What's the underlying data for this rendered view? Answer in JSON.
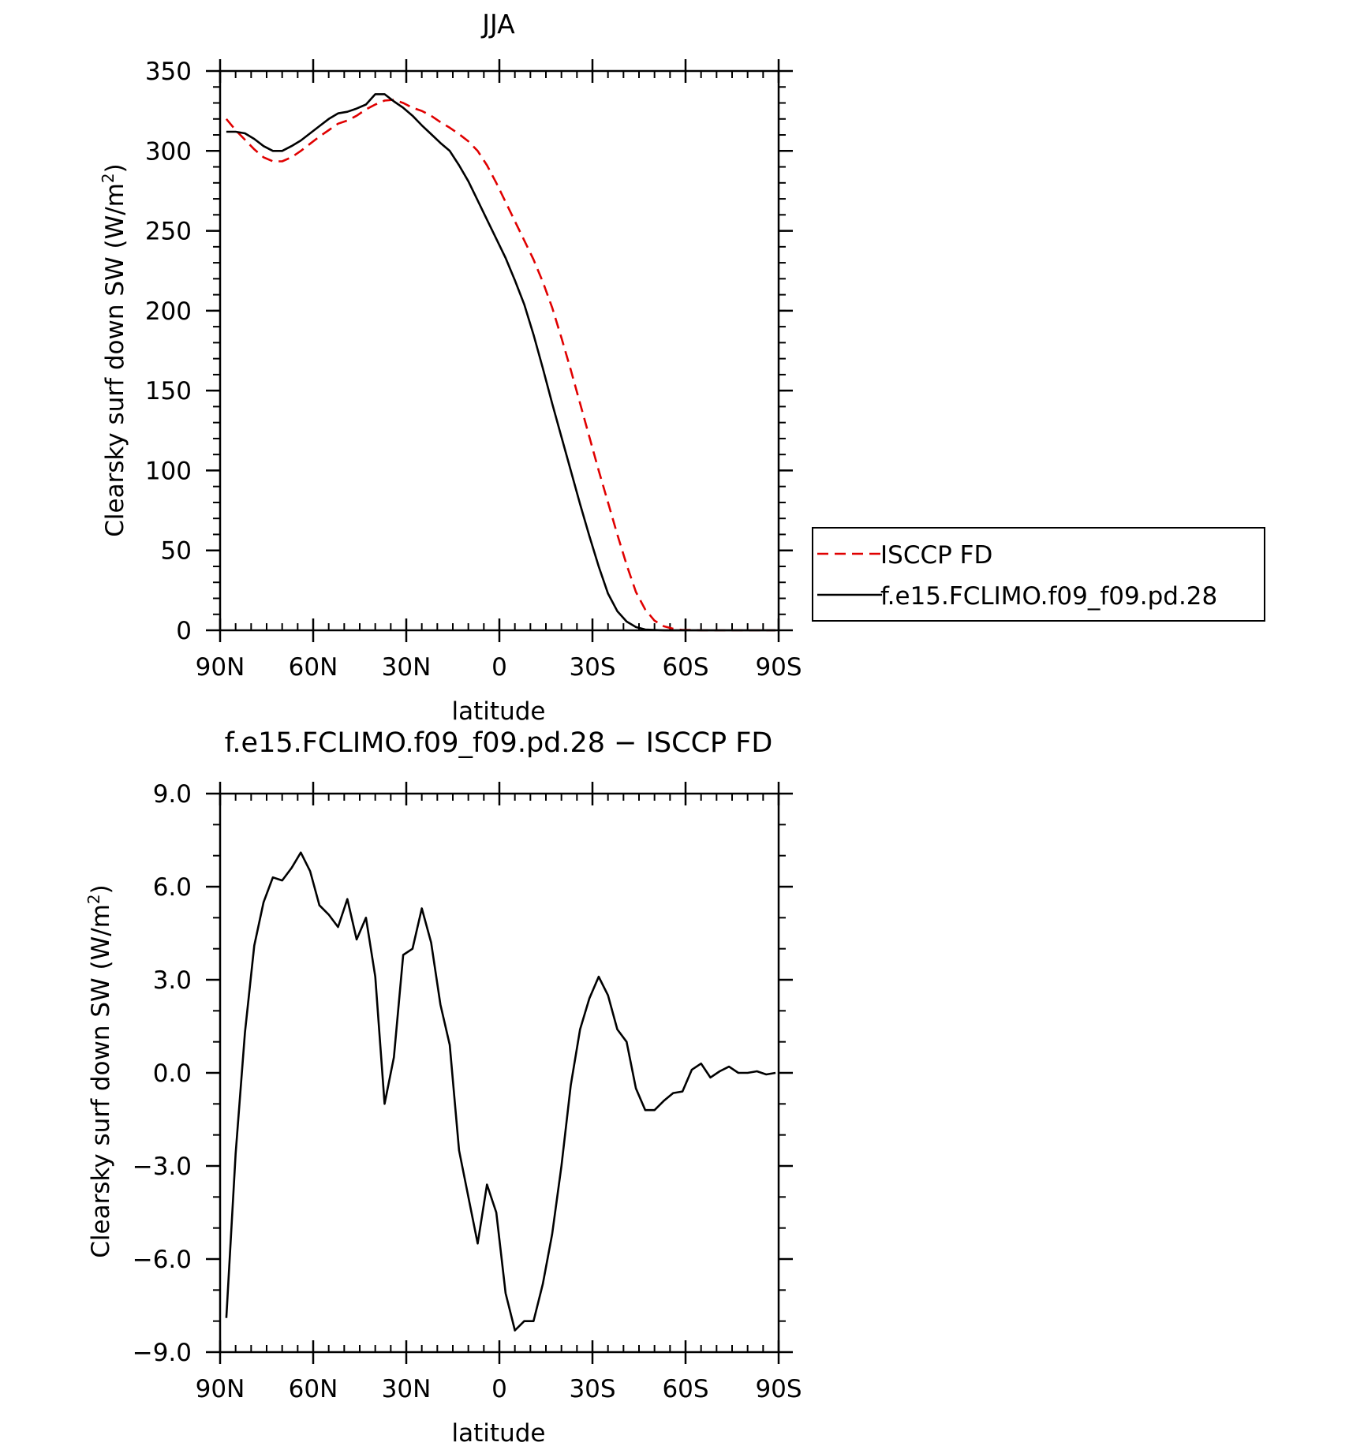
{
  "chart_data": [
    {
      "type": "line",
      "title": "JJA",
      "xlabel": "latitude",
      "ylabel": "Clearsky surf down SW (W/m²)",
      "ylabel_text": "Clearsky surf down SW (W/m",
      "ylabel_sup": "2",
      "ylabel_close": ")",
      "xlim": [
        90,
        -90
      ],
      "ylim": [
        0,
        350
      ],
      "x_ticks": [
        90,
        60,
        30,
        0,
        -30,
        -60,
        -90
      ],
      "x_tick_labels": [
        "90N",
        "60N",
        "30N",
        "0",
        "30S",
        "60S",
        "90S"
      ],
      "y_ticks": [
        0,
        50,
        100,
        150,
        200,
        250,
        300,
        350
      ],
      "y_tick_labels": [
        "0",
        "50",
        "100",
        "150",
        "200",
        "250",
        "300",
        "350"
      ],
      "legend_position": "right",
      "series": [
        {
          "name": "ISCCP FD",
          "color": "#e00000",
          "dash": "dashed",
          "x": [
            88,
            85,
            82,
            79,
            76,
            73,
            70,
            67,
            64,
            61,
            58,
            55,
            52,
            49,
            46,
            43,
            40,
            37,
            34,
            31,
            28,
            25,
            22,
            19,
            16,
            13,
            10,
            7,
            4,
            1,
            -2,
            -5,
            -8,
            -11,
            -14,
            -17,
            -20,
            -23,
            -26,
            -29,
            -32,
            -35,
            -38,
            -41,
            -44,
            -47,
            -50,
            -53,
            -56,
            -59,
            -62,
            -65,
            -68,
            -71,
            -74,
            -77,
            -80,
            -83,
            -86,
            -89
          ],
          "y": [
            320,
            313,
            307,
            301,
            296,
            293.5,
            293.5,
            296,
            300,
            304.5,
            309,
            313,
            317,
            319,
            322,
            326,
            329,
            331.5,
            332,
            330,
            327,
            325,
            322,
            318,
            314.5,
            310.5,
            306,
            300,
            291,
            280,
            268,
            256,
            244,
            232,
            218,
            202,
            183,
            163,
            142,
            121,
            100,
            80,
            60,
            41,
            24,
            13,
            6,
            2.5,
            1,
            0.2,
            0.2,
            0,
            0,
            0,
            0,
            0,
            0,
            0,
            0,
            0
          ]
        },
        {
          "name": "f.e15.FCLIMO.f09_f09.pd.28",
          "color": "#000000",
          "dash": "solid",
          "x": [
            88,
            85,
            82,
            79,
            76,
            73,
            70,
            67,
            64,
            61,
            58,
            55,
            52,
            49,
            46,
            43,
            40,
            37,
            34,
            31,
            28,
            25,
            22,
            19,
            16,
            13,
            10,
            7,
            4,
            1,
            -2,
            -5,
            -8,
            -11,
            -14,
            -17,
            -20,
            -23,
            -26,
            -29,
            -32,
            -35,
            -38,
            -41,
            -44,
            -47,
            -50,
            -53,
            -56,
            -59,
            -62,
            -65,
            -68,
            -71,
            -74,
            -77,
            -80,
            -83,
            -86,
            -89
          ],
          "y": [
            312,
            312,
            311,
            307.5,
            303,
            300,
            300,
            303,
            306.5,
            311,
            315.5,
            320,
            323.5,
            324.5,
            326.5,
            329,
            335.5,
            335.5,
            331,
            327,
            322,
            316,
            310.5,
            305,
            300,
            291,
            281,
            269,
            257,
            245,
            233,
            219,
            204,
            185,
            164,
            142,
            121,
            100,
            79,
            59,
            40,
            23,
            12,
            5.5,
            2,
            0.5,
            0.2,
            0,
            0,
            0,
            0,
            0,
            0,
            0,
            0,
            0,
            0,
            0,
            0,
            0
          ]
        }
      ]
    },
    {
      "type": "line",
      "title": "f.e15.FCLIMO.f09_f09.pd.28 − ISCCP FD",
      "xlabel": "latitude",
      "ylabel": "Clearsky surf down SW (W/m²)",
      "ylabel_text": "Clearsky surf down SW (W/m",
      "ylabel_sup": "2",
      "ylabel_close": ")",
      "xlim": [
        90,
        -90
      ],
      "ylim": [
        -9,
        9
      ],
      "x_ticks": [
        90,
        60,
        30,
        0,
        -30,
        -60,
        -90
      ],
      "x_tick_labels": [
        "90N",
        "60N",
        "30N",
        "0",
        "30S",
        "60S",
        "90S"
      ],
      "y_ticks": [
        -9,
        -6,
        -3,
        0,
        3,
        6,
        9
      ],
      "y_tick_labels": [
        "−9.0",
        "−6.0",
        "−3.0",
        "0.0",
        "3.0",
        "6.0",
        "9.0"
      ],
      "series": [
        {
          "color": "#000000",
          "dash": "solid",
          "x": [
            88,
            85,
            82,
            79,
            76,
            73,
            70,
            67,
            64,
            61,
            58,
            55,
            52,
            49,
            46,
            43,
            40,
            37,
            34,
            31,
            28,
            25,
            22,
            19,
            16,
            13,
            10,
            7,
            4,
            1,
            -2,
            -5,
            -8,
            -11,
            -14,
            -17,
            -20,
            -23,
            -26,
            -29,
            -32,
            -35,
            -38,
            -41,
            -44,
            -47,
            -50,
            -53,
            -56,
            -59,
            -62,
            -65,
            -68,
            -71,
            -74,
            -77,
            -80,
            -83,
            -86,
            -89
          ],
          "y": [
            -7.9,
            -2.6,
            1.3,
            4.1,
            5.5,
            6.3,
            6.2,
            6.6,
            7.1,
            6.5,
            5.4,
            5.1,
            4.7,
            5.6,
            4.3,
            5.0,
            3.1,
            -1.0,
            0.5,
            3.8,
            4.0,
            5.3,
            4.2,
            2.2,
            0.9,
            -2.5,
            -4.0,
            -5.5,
            -3.6,
            -4.5,
            -7.1,
            -8.3,
            -8.0,
            -8.0,
            -6.8,
            -5.2,
            -3.0,
            -0.4,
            1.4,
            2.4,
            3.1,
            2.5,
            1.4,
            1.0,
            -0.5,
            -1.2,
            -1.2,
            -0.9,
            -0.65,
            -0.6,
            0.1,
            0.3,
            -0.15,
            0.05,
            0.2,
            0.0,
            0.0,
            0.05,
            -0.05,
            0.0
          ]
        }
      ]
    }
  ]
}
